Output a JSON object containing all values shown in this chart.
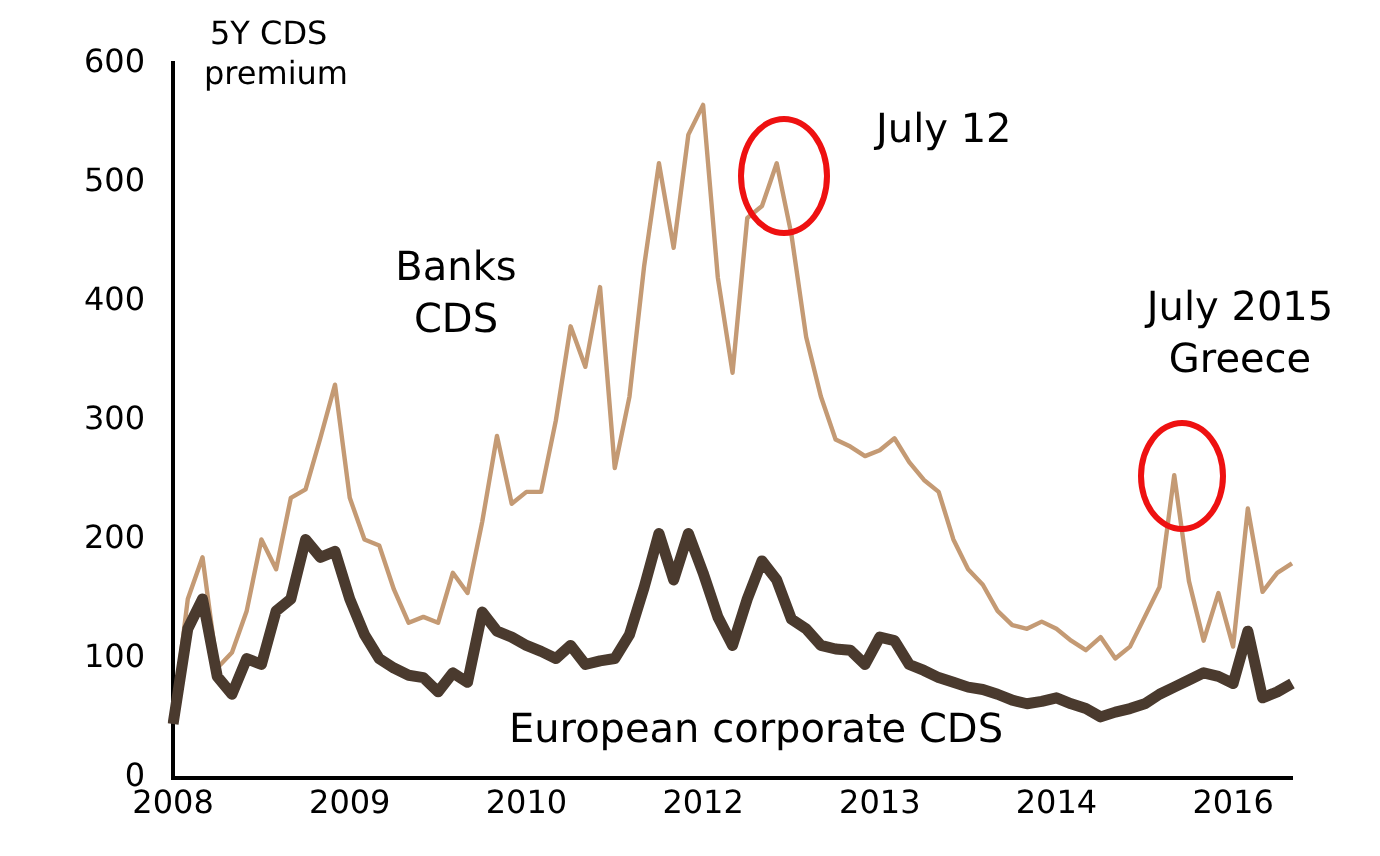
{
  "chart_data": {
    "type": "line",
    "ylabel": "5Y CDS premium",
    "categories": [
      "2008",
      null,
      null,
      null,
      null,
      null,
      null,
      null,
      null,
      null,
      null,
      null,
      "2009",
      null,
      null,
      null,
      null,
      null,
      null,
      null,
      null,
      null,
      null,
      null,
      "2010",
      null,
      null,
      null,
      null,
      null,
      null,
      null,
      null,
      null,
      null,
      null,
      "2012",
      null,
      null,
      null,
      null,
      null,
      null,
      null,
      null,
      null,
      null,
      null,
      "2013",
      null,
      null,
      null,
      null,
      null,
      null,
      null,
      null,
      null,
      null,
      null,
      "2014",
      null,
      null,
      null,
      null,
      null,
      null,
      null,
      null,
      null,
      null,
      null,
      "2016",
      null,
      null,
      null,
      null
    ],
    "ylim": [
      0,
      600
    ],
    "yticks": [
      0,
      100,
      200,
      300,
      400,
      500,
      600
    ],
    "series": [
      {
        "name": "Banks CDS",
        "color": "#c49a74",
        "values": [
          50,
          150,
          185,
          92,
          105,
          140,
          200,
          175,
          235,
          242,
          285,
          330,
          235,
          200,
          195,
          158,
          130,
          135,
          130,
          172,
          155,
          215,
          287,
          230,
          240,
          240,
          300,
          379,
          345,
          412,
          260,
          320,
          430,
          516,
          445,
          540,
          565,
          420,
          340,
          470,
          480,
          516,
          456,
          370,
          320,
          284,
          278,
          270,
          275,
          285,
          265,
          250,
          240,
          200,
          175,
          162,
          140,
          128,
          125,
          131,
          125,
          115,
          107,
          118,
          100,
          110,
          135,
          160,
          254,
          165,
          115,
          155,
          110,
          226,
          156,
          172,
          180
        ]
      },
      {
        "name": "European corporate CDS",
        "color": "#4a3a2e",
        "values": [
          45,
          125,
          150,
          85,
          70,
          100,
          95,
          140,
          150,
          200,
          185,
          190,
          150,
          120,
          100,
          92,
          86,
          84,
          72,
          88,
          80,
          139,
          123,
          118,
          111,
          106,
          100,
          111,
          95,
          98,
          100,
          120,
          160,
          205,
          166,
          205,
          172,
          135,
          111,
          150,
          182,
          166,
          133,
          125,
          111,
          108,
          107,
          95,
          118,
          115,
          95,
          90,
          84,
          80,
          76,
          74,
          70,
          65,
          62,
          64,
          67,
          62,
          58,
          51,
          55,
          58,
          62,
          70,
          76,
          82,
          88,
          85,
          79,
          123,
          67,
          72,
          79
        ]
      }
    ],
    "annotations": [
      "July 12",
      "July 2015\nGreece"
    ]
  }
}
